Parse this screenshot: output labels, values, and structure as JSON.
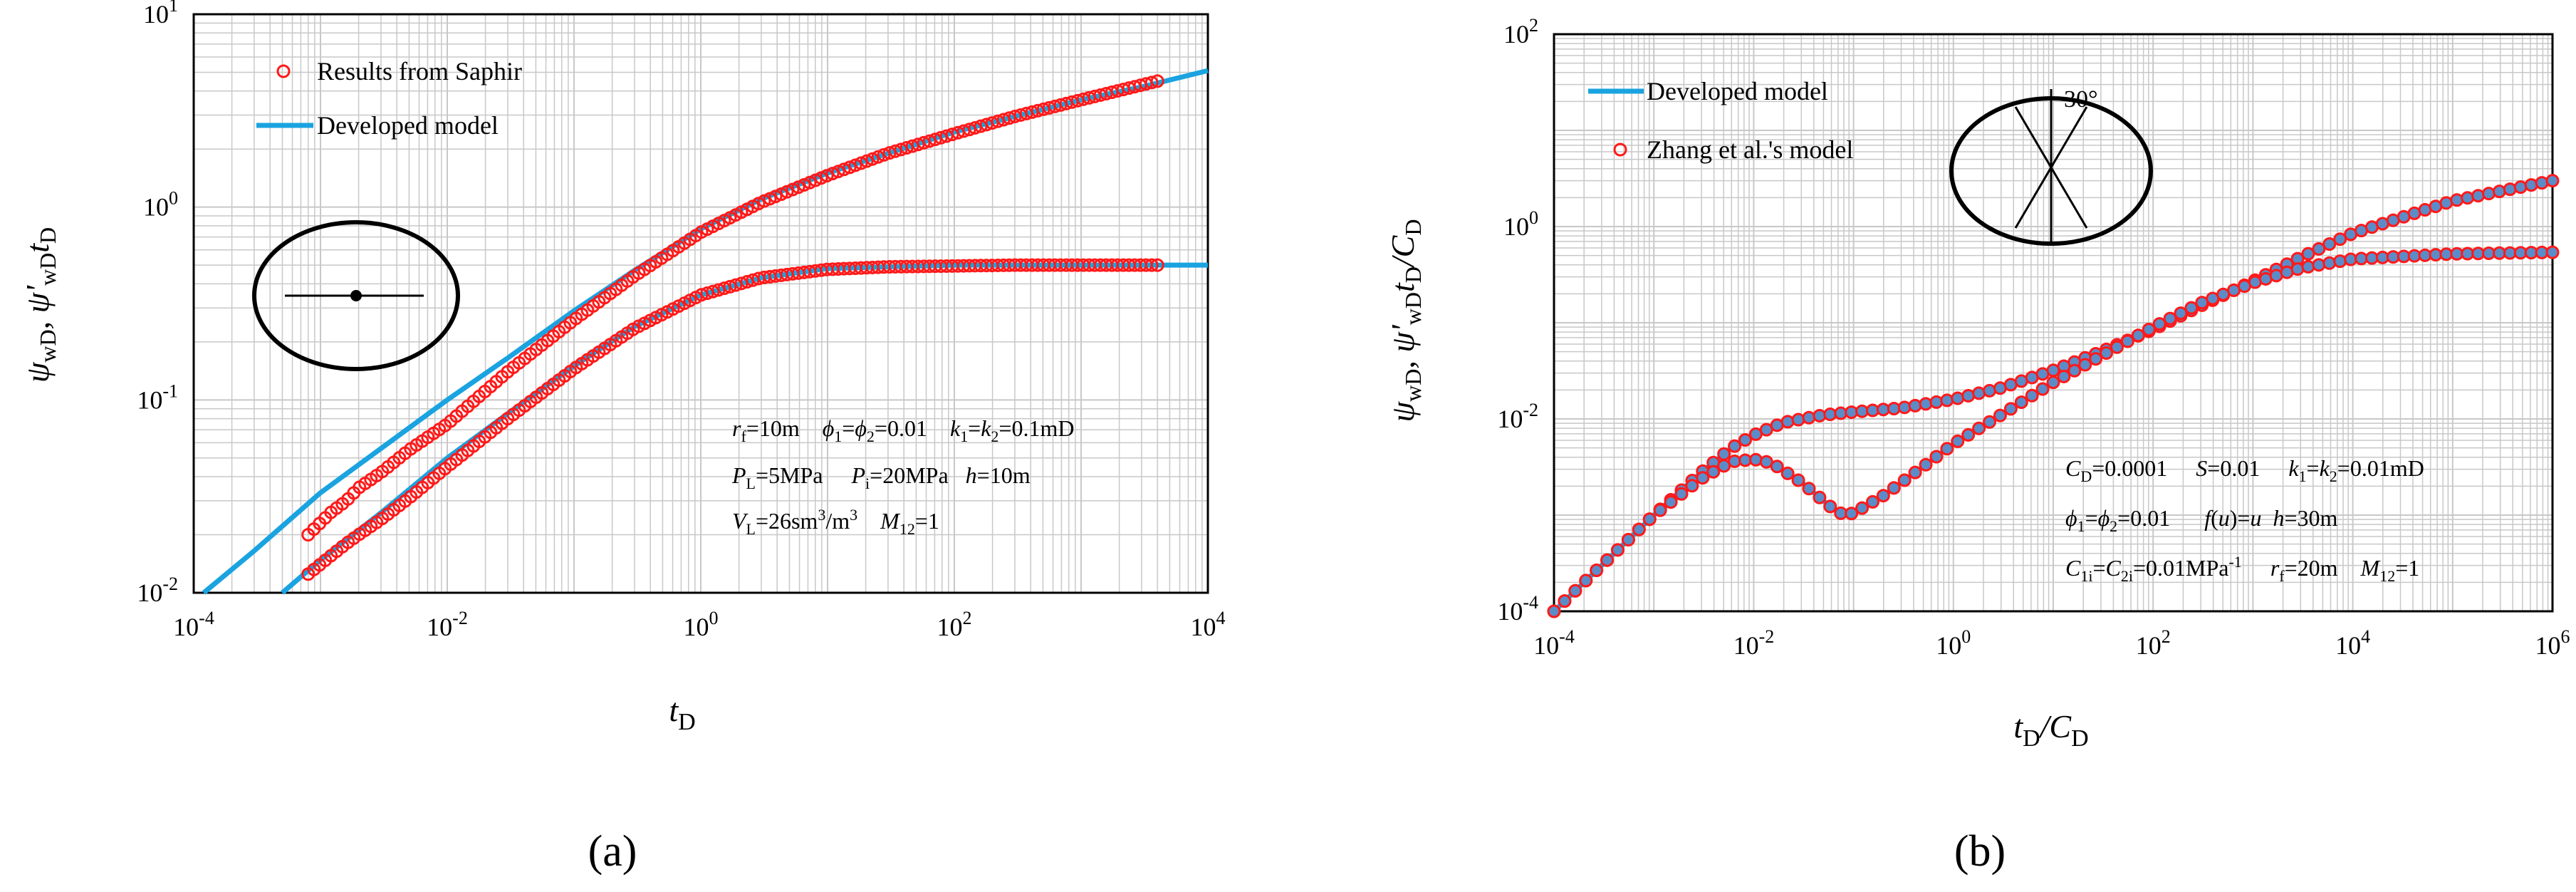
{
  "panel_labels": {
    "a": "(a)",
    "b": "(b)"
  },
  "chart_data": [
    {
      "id": "a",
      "type": "scatter",
      "xscale": "log",
      "yscale": "log",
      "xlim": [
        0.0001,
        10000
      ],
      "ylim": [
        0.01,
        10
      ],
      "xticks": [
        {
          "base": "10",
          "exp": "-4"
        },
        {
          "base": "10",
          "exp": "-2"
        },
        {
          "base": "10",
          "exp": "0"
        },
        {
          "base": "10",
          "exp": "2"
        },
        {
          "base": "10",
          "exp": "4"
        }
      ],
      "yticks": [
        {
          "base": "10",
          "exp": "-2"
        },
        {
          "base": "10",
          "exp": "-1"
        },
        {
          "base": "10",
          "exp": "0"
        },
        {
          "base": "10",
          "exp": "1"
        }
      ],
      "xlabel": {
        "main": "t",
        "sub": "D"
      },
      "ylabel": {
        "p1": "ψ",
        "s1": "wD",
        "p2": ", ψ'",
        "s2": "wD",
        "p3": "t",
        "s3": "D"
      },
      "legend": [
        {
          "name": "Results from Saphir",
          "style": "circles",
          "color": "#ff1a1a"
        },
        {
          "name": "Developed model",
          "style": "line",
          "color": "#1aa3e0"
        }
      ],
      "series": [
        {
          "name": "Developed model - pressure",
          "style": "line",
          "color": "#1aa3e0",
          "x": [
            0.00012,
            0.0003,
            0.001,
            0.003,
            0.01,
            0.03,
            0.1,
            0.3,
            1,
            3,
            10,
            30,
            100,
            300,
            1000,
            3000,
            10000
          ],
          "y": [
            0.0098,
            0.0165,
            0.033,
            0.056,
            0.1,
            0.165,
            0.29,
            0.47,
            0.77,
            1.1,
            1.5,
            1.9,
            2.45,
            2.95,
            3.6,
            4.2,
            5.1
          ]
        },
        {
          "name": "Developed model - derivative",
          "style": "line",
          "color": "#1aa3e0",
          "x": [
            0.0005,
            0.001,
            0.003,
            0.01,
            0.03,
            0.1,
            0.3,
            1,
            3,
            10,
            30,
            100,
            300,
            1000,
            10000
          ],
          "y": [
            0.0098,
            0.0148,
            0.026,
            0.05,
            0.085,
            0.15,
            0.24,
            0.35,
            0.43,
            0.48,
            0.49,
            0.5,
            0.5,
            0.5,
            0.5
          ]
        },
        {
          "name": "Results from Saphir - pressure",
          "style": "circles",
          "color": "#ff1a1a",
          "x": [
            0.0008,
            0.0012,
            0.0016,
            0.002,
            0.003,
            0.005,
            0.01,
            0.03,
            0.1,
            0.3,
            1,
            3,
            10,
            30,
            100,
            300,
            1000,
            4000
          ],
          "y": [
            0.02,
            0.026,
            0.03,
            0.035,
            0.042,
            0.055,
            0.075,
            0.14,
            0.26,
            0.44,
            0.74,
            1.06,
            1.46,
            1.9,
            2.4,
            2.95,
            3.6,
            4.5
          ]
        },
        {
          "name": "Results from Saphir - derivative",
          "style": "circles",
          "color": "#ff1a1a",
          "x": [
            0.0008,
            0.0012,
            0.0016,
            0.002,
            0.003,
            0.005,
            0.01,
            0.03,
            0.1,
            0.3,
            1,
            3,
            10,
            30,
            100,
            300,
            1000,
            4000
          ],
          "y": [
            0.0125,
            0.0155,
            0.018,
            0.02,
            0.024,
            0.031,
            0.045,
            0.08,
            0.145,
            0.235,
            0.35,
            0.43,
            0.475,
            0.49,
            0.495,
            0.5,
            0.5,
            0.5
          ]
        }
      ],
      "annotations": [
        {
          "segs": [
            {
              "t": "r"
            },
            {
              "t": "f",
              "sub": true
            },
            {
              "t": "=10m    "
            },
            {
              "t": "ϕ"
            },
            {
              "t": "1",
              "sub": true
            },
            {
              "t": "="
            },
            {
              "t": "ϕ"
            },
            {
              "t": "2",
              "sub": true
            },
            {
              "t": "=0.01    "
            },
            {
              "t": "k"
            },
            {
              "t": "1",
              "sub": true
            },
            {
              "t": "="
            },
            {
              "t": "k"
            },
            {
              "t": "2",
              "sub": true
            },
            {
              "t": "=0.1mD"
            }
          ]
        },
        {
          "segs": [
            {
              "t": "P"
            },
            {
              "t": "L",
              "sub": true
            },
            {
              "t": "=5MPa     "
            },
            {
              "t": "P"
            },
            {
              "t": "i",
              "sub": true
            },
            {
              "t": "=20MPa   "
            },
            {
              "t": "h"
            },
            {
              "t": "=10m"
            }
          ]
        },
        {
          "segs": [
            {
              "t": "V"
            },
            {
              "t": "L",
              "sub": true
            },
            {
              "t": "=26sm"
            },
            {
              "t": "3",
              "sup": true
            },
            {
              "t": "/m"
            },
            {
              "t": "3",
              "sup": true
            },
            {
              "t": "    "
            },
            {
              "t": "M"
            },
            {
              "t": "12",
              "sub": true
            },
            {
              "t": "=1"
            }
          ]
        }
      ]
    },
    {
      "id": "b",
      "type": "scatter",
      "xscale": "log",
      "yscale": "log",
      "xlim": [
        0.0001,
        1000000
      ],
      "ylim": [
        0.0001,
        100
      ],
      "xticks": [
        {
          "base": "10",
          "exp": "-4"
        },
        {
          "base": "10",
          "exp": "-2"
        },
        {
          "base": "10",
          "exp": "0"
        },
        {
          "base": "10",
          "exp": "2"
        },
        {
          "base": "10",
          "exp": "4"
        },
        {
          "base": "10",
          "exp": "6"
        }
      ],
      "yticks": [
        {
          "base": "10",
          "exp": "-4"
        },
        {
          "base": "10",
          "exp": "-2"
        },
        {
          "base": "10",
          "exp": "0"
        },
        {
          "base": "10",
          "exp": "2"
        }
      ],
      "xlabel": {
        "main": "t",
        "sub": "D",
        "rest": "/C",
        "sub2": "D"
      },
      "ylabel": {
        "p1": "ψ",
        "s1": "wD",
        "p2": ", ψ'",
        "s2": "wD",
        "p3": "t",
        "s3": "D",
        "p4": "/C",
        "s4": "D"
      },
      "angle_label": "30°",
      "legend": [
        {
          "name": "Developed model",
          "style": "line",
          "color": "#1aa3e0"
        },
        {
          "name": "Zhang et al.'s model",
          "style": "circles",
          "color": "#ff1a1a"
        }
      ],
      "series": [
        {
          "name": "Developed model - pressure",
          "style": "line",
          "color": "#1aa3e0",
          "x": [
            0.0001,
            0.0003,
            0.001,
            0.003,
            0.006,
            0.01,
            0.02,
            0.05,
            0.1,
            0.3,
            1,
            3,
            10,
            30,
            100,
            300,
            1000,
            3000,
            10000,
            100000,
            1000000
          ],
          "y": [
            0.0001,
            0.0003,
            0.001,
            0.0028,
            0.005,
            0.0068,
            0.0092,
            0.011,
            0.0118,
            0.013,
            0.016,
            0.021,
            0.032,
            0.05,
            0.085,
            0.15,
            0.27,
            0.48,
            0.85,
            1.85,
            3.0
          ]
        },
        {
          "name": "Developed model - derivative",
          "style": "line",
          "color": "#1aa3e0",
          "x": [
            0.0001,
            0.0003,
            0.001,
            0.003,
            0.006,
            0.01,
            0.015,
            0.03,
            0.06,
            0.08,
            0.1,
            0.2,
            0.5,
            1,
            3,
            10,
            30,
            100,
            300,
            1000,
            3000,
            10000,
            100000,
            1000000
          ],
          "y": [
            0.0001,
            0.0003,
            0.001,
            0.0024,
            0.0036,
            0.0038,
            0.0035,
            0.0022,
            0.0012,
            0.001,
            0.00105,
            0.0016,
            0.0032,
            0.0055,
            0.011,
            0.024,
            0.045,
            0.09,
            0.16,
            0.26,
            0.37,
            0.46,
            0.52,
            0.54
          ]
        },
        {
          "name": "Zhang et al.'s model - pressure",
          "style": "circles",
          "color": "#ff1a1a",
          "x": [
            0.0001,
            0.0003,
            0.001,
            0.003,
            0.006,
            0.01,
            0.02,
            0.05,
            0.1,
            0.3,
            1,
            3,
            10,
            30,
            100,
            300,
            1000,
            3000,
            10000,
            100000,
            1000000
          ],
          "y": [
            0.0001,
            0.0003,
            0.001,
            0.0028,
            0.005,
            0.0068,
            0.0092,
            0.011,
            0.0118,
            0.013,
            0.016,
            0.021,
            0.032,
            0.05,
            0.085,
            0.15,
            0.27,
            0.48,
            0.85,
            1.85,
            3.0
          ]
        },
        {
          "name": "Zhang et al.'s model - derivative",
          "style": "circles",
          "color": "#ff1a1a",
          "x": [
            0.0001,
            0.0003,
            0.001,
            0.003,
            0.006,
            0.01,
            0.015,
            0.03,
            0.06,
            0.08,
            0.1,
            0.2,
            0.5,
            1,
            3,
            10,
            30,
            100,
            300,
            1000,
            3000,
            10000,
            100000,
            1000000
          ],
          "y": [
            0.0001,
            0.0003,
            0.001,
            0.0024,
            0.0036,
            0.0038,
            0.0035,
            0.0022,
            0.0012,
            0.001,
            0.00105,
            0.0016,
            0.0032,
            0.0055,
            0.011,
            0.024,
            0.045,
            0.09,
            0.16,
            0.26,
            0.37,
            0.46,
            0.52,
            0.54
          ]
        }
      ],
      "annotations": [
        {
          "segs": [
            {
              "t": "C"
            },
            {
              "t": "D",
              "sub": true
            },
            {
              "t": "=0.0001     "
            },
            {
              "t": "S"
            },
            {
              "t": "=0.01     "
            },
            {
              "t": "k"
            },
            {
              "t": "1",
              "sub": true
            },
            {
              "t": "="
            },
            {
              "t": "k"
            },
            {
              "t": "2",
              "sub": true
            },
            {
              "t": "=0.01mD"
            }
          ]
        },
        {
          "segs": [
            {
              "t": "ϕ"
            },
            {
              "t": "1",
              "sub": true
            },
            {
              "t": "="
            },
            {
              "t": "ϕ"
            },
            {
              "t": "2",
              "sub": true
            },
            {
              "t": "=0.01      "
            },
            {
              "t": "f"
            },
            {
              "t": "("
            },
            {
              "t": "u"
            },
            {
              "t": ")="
            },
            {
              "t": "u"
            },
            {
              "t": "  "
            },
            {
              "t": "h"
            },
            {
              "t": "=30m"
            }
          ]
        },
        {
          "segs": [
            {
              "t": "C"
            },
            {
              "t": "1i",
              "sub": true
            },
            {
              "t": "="
            },
            {
              "t": "C"
            },
            {
              "t": "2i",
              "sub": true
            },
            {
              "t": "=0.01MPa"
            },
            {
              "t": "-1",
              "sup": true
            },
            {
              "t": "     "
            },
            {
              "t": "r"
            },
            {
              "t": "f",
              "sub": true
            },
            {
              "t": "=20m    "
            },
            {
              "t": "M"
            },
            {
              "t": "12",
              "sub": true
            },
            {
              "t": "=1"
            }
          ]
        }
      ]
    }
  ]
}
